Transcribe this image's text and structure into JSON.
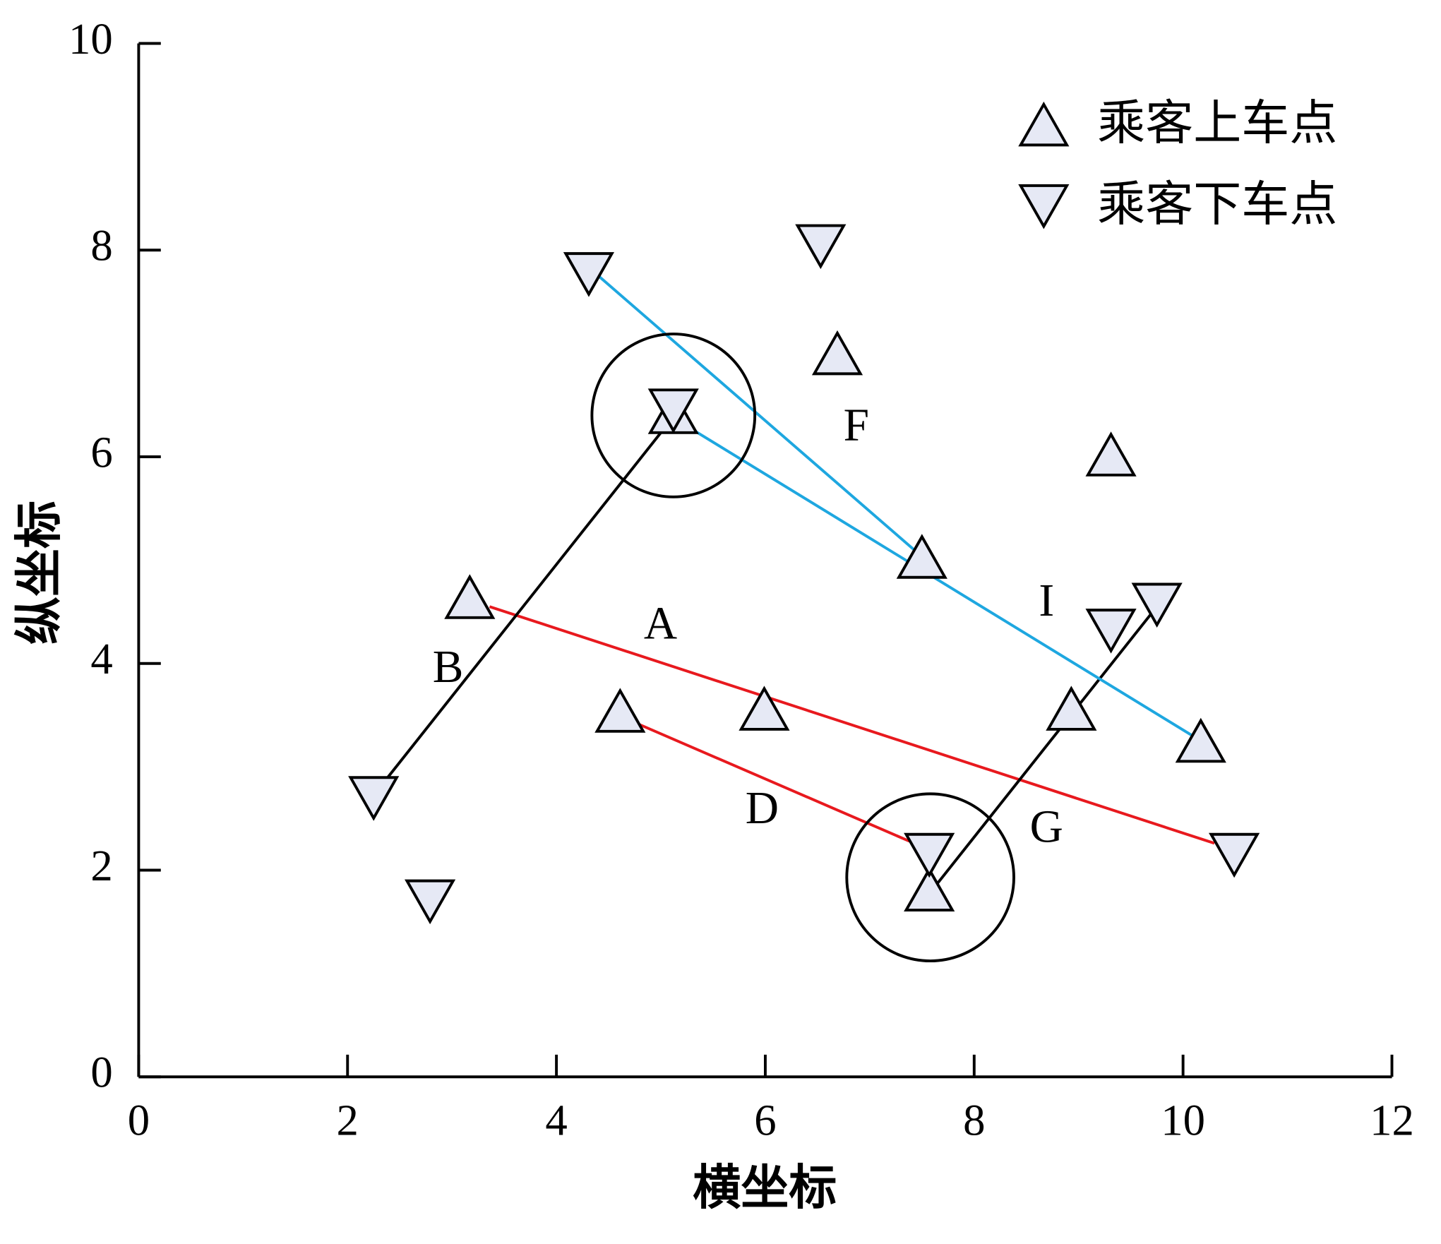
{
  "chart_data": {
    "type": "scatter",
    "x_label": "横坐标",
    "y_label": "纵坐标",
    "xlim": [
      0,
      12
    ],
    "xticks": [
      0,
      2,
      4,
      6,
      8,
      10,
      12
    ],
    "ylim": [
      0,
      10
    ],
    "yticks": [
      0,
      2,
      4,
      6,
      8,
      10
    ],
    "legend": "upper right",
    "series": [
      {
        "name": "乘客上车点",
        "color": "#e6e9f5",
        "marker": "triangle-up",
        "x": [
          3.17,
          4.61,
          5.99,
          6.69,
          7.5,
          8.93,
          9.31,
          10.17,
          5.12,
          7.57
        ],
        "y": [
          4.64,
          3.54,
          3.56,
          7.0,
          5.03,
          3.56,
          6.02,
          3.25,
          6.43,
          1.81
        ]
      },
      {
        "name": "乘客下车点",
        "color": "#e6e9f5",
        "marker": "triangle-down",
        "x": [
          4.31,
          6.53,
          5.12,
          2.25,
          2.79,
          7.57,
          9.31,
          9.75,
          10.49
        ],
        "y": [
          7.77,
          8.04,
          6.45,
          2.7,
          1.7,
          2.15,
          4.32,
          4.57,
          2.15
        ]
      }
    ],
    "segments": [
      {
        "color": "#e8191e",
        "x": [
          3.36,
          10.3
        ],
        "y": [
          4.55,
          2.26
        ]
      },
      {
        "color": "#e8191e",
        "x": [
          4.77,
          7.38
        ],
        "y": [
          3.42,
          2.28
        ]
      },
      {
        "color": "#000000",
        "x": [
          2.34,
          5.06
        ],
        "y": [
          2.84,
          6.31
        ]
      },
      {
        "color": "#000000",
        "x": [
          7.6,
          9.71
        ],
        "y": [
          1.81,
          4.5
        ]
      },
      {
        "color": "#1ea7e0",
        "x": [
          4.38,
          7.47
        ],
        "y": [
          7.77,
          5.06
        ]
      },
      {
        "color": "#1ea7e0",
        "x": [
          5.26,
          10.14
        ],
        "y": [
          6.29,
          3.27
        ]
      }
    ],
    "circles": [
      {
        "x": 5.12,
        "y": 6.4,
        "r": 0.78
      },
      {
        "x": 7.58,
        "y": 1.93,
        "r": 0.8
      }
    ],
    "annotations": [
      "A",
      "B",
      "D",
      "F",
      "G",
      "I"
    ]
  }
}
